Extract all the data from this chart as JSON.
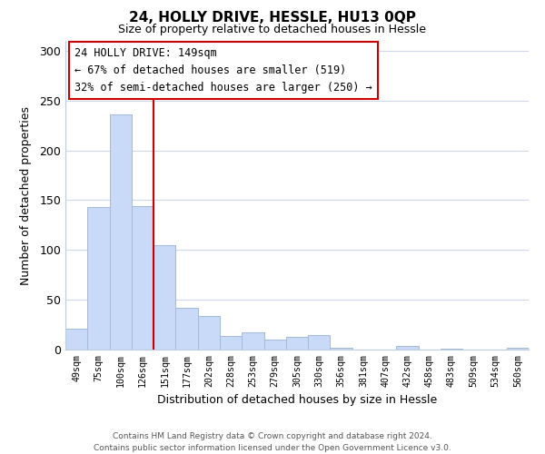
{
  "title": "24, HOLLY DRIVE, HESSLE, HU13 0QP",
  "subtitle": "Size of property relative to detached houses in Hessle",
  "xlabel": "Distribution of detached houses by size in Hessle",
  "ylabel": "Number of detached properties",
  "categories": [
    "49sqm",
    "75sqm",
    "100sqm",
    "126sqm",
    "151sqm",
    "177sqm",
    "202sqm",
    "228sqm",
    "253sqm",
    "279sqm",
    "305sqm",
    "330sqm",
    "356sqm",
    "381sqm",
    "407sqm",
    "432sqm",
    "458sqm",
    "483sqm",
    "509sqm",
    "534sqm",
    "560sqm"
  ],
  "values": [
    21,
    143,
    236,
    144,
    105,
    42,
    34,
    14,
    17,
    10,
    13,
    15,
    2,
    0,
    0,
    4,
    0,
    1,
    0,
    0,
    2
  ],
  "bar_color": "#c9daf8",
  "bar_edge_color": "#a4b8d8",
  "vline_x_idx": 4,
  "vline_color": "#cc0000",
  "annotation_title": "24 HOLLY DRIVE: 149sqm",
  "annotation_line1": "← 67% of detached houses are smaller (519)",
  "annotation_line2": "32% of semi-detached houses are larger (250) →",
  "annotation_box_color": "#ffffff",
  "annotation_box_edge": "#cc0000",
  "ylim": [
    0,
    310
  ],
  "yticks": [
    0,
    50,
    100,
    150,
    200,
    250,
    300
  ],
  "footer1": "Contains HM Land Registry data © Crown copyright and database right 2024.",
  "footer2": "Contains public sector information licensed under the Open Government Licence v3.0.",
  "background_color": "#ffffff",
  "grid_color": "#cdd8ea"
}
